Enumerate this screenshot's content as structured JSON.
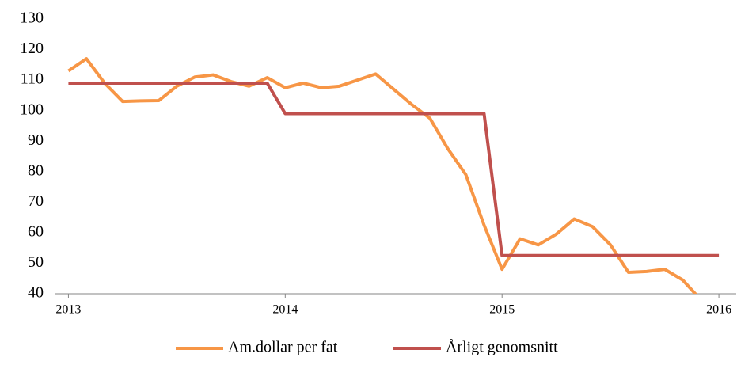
{
  "chart_data": {
    "type": "line",
    "xlim": [
      2012.94,
      2016.08
    ],
    "xticks": [
      2013,
      2014,
      2015,
      2016
    ],
    "ylim": [
      40,
      130
    ],
    "yticks": [
      40,
      50,
      60,
      70,
      80,
      90,
      100,
      110,
      120,
      130
    ],
    "legend": "bottom",
    "series": [
      {
        "name": "Am.dollar per fat",
        "color": "#f79646",
        "x": [
          2013,
          2013.083,
          2013.167,
          2013.25,
          2013.333,
          2013.417,
          2013.5,
          2013.583,
          2013.667,
          2013.75,
          2013.833,
          2013.917,
          2014,
          2014.083,
          2014.167,
          2014.25,
          2014.333,
          2014.417,
          2014.5,
          2014.583,
          2014.667,
          2014.75,
          2014.833,
          2014.917,
          2015,
          2015.083,
          2015.167,
          2015.25,
          2015.333,
          2015.417,
          2015.5,
          2015.583,
          2015.667,
          2015.75,
          2015.833,
          2015.917
        ],
        "values": [
          113,
          117,
          109,
          103,
          103.2,
          103.3,
          108,
          111,
          111.7,
          109.5,
          108,
          110.8,
          107.5,
          109,
          107.5,
          108,
          110,
          112,
          107,
          102,
          97.5,
          87.5,
          79,
          62.5,
          48,
          58,
          56,
          59.5,
          64.5,
          62,
          56,
          47,
          47.3,
          48,
          44.5,
          38
        ]
      },
      {
        "name": "Årligt genomsnitt",
        "color": "#c0504d",
        "x": [
          2013,
          2013.917,
          2014,
          2014.917,
          2015,
          2016
        ],
        "values": [
          109,
          109,
          99,
          99,
          52.5,
          52.5
        ]
      }
    ]
  }
}
